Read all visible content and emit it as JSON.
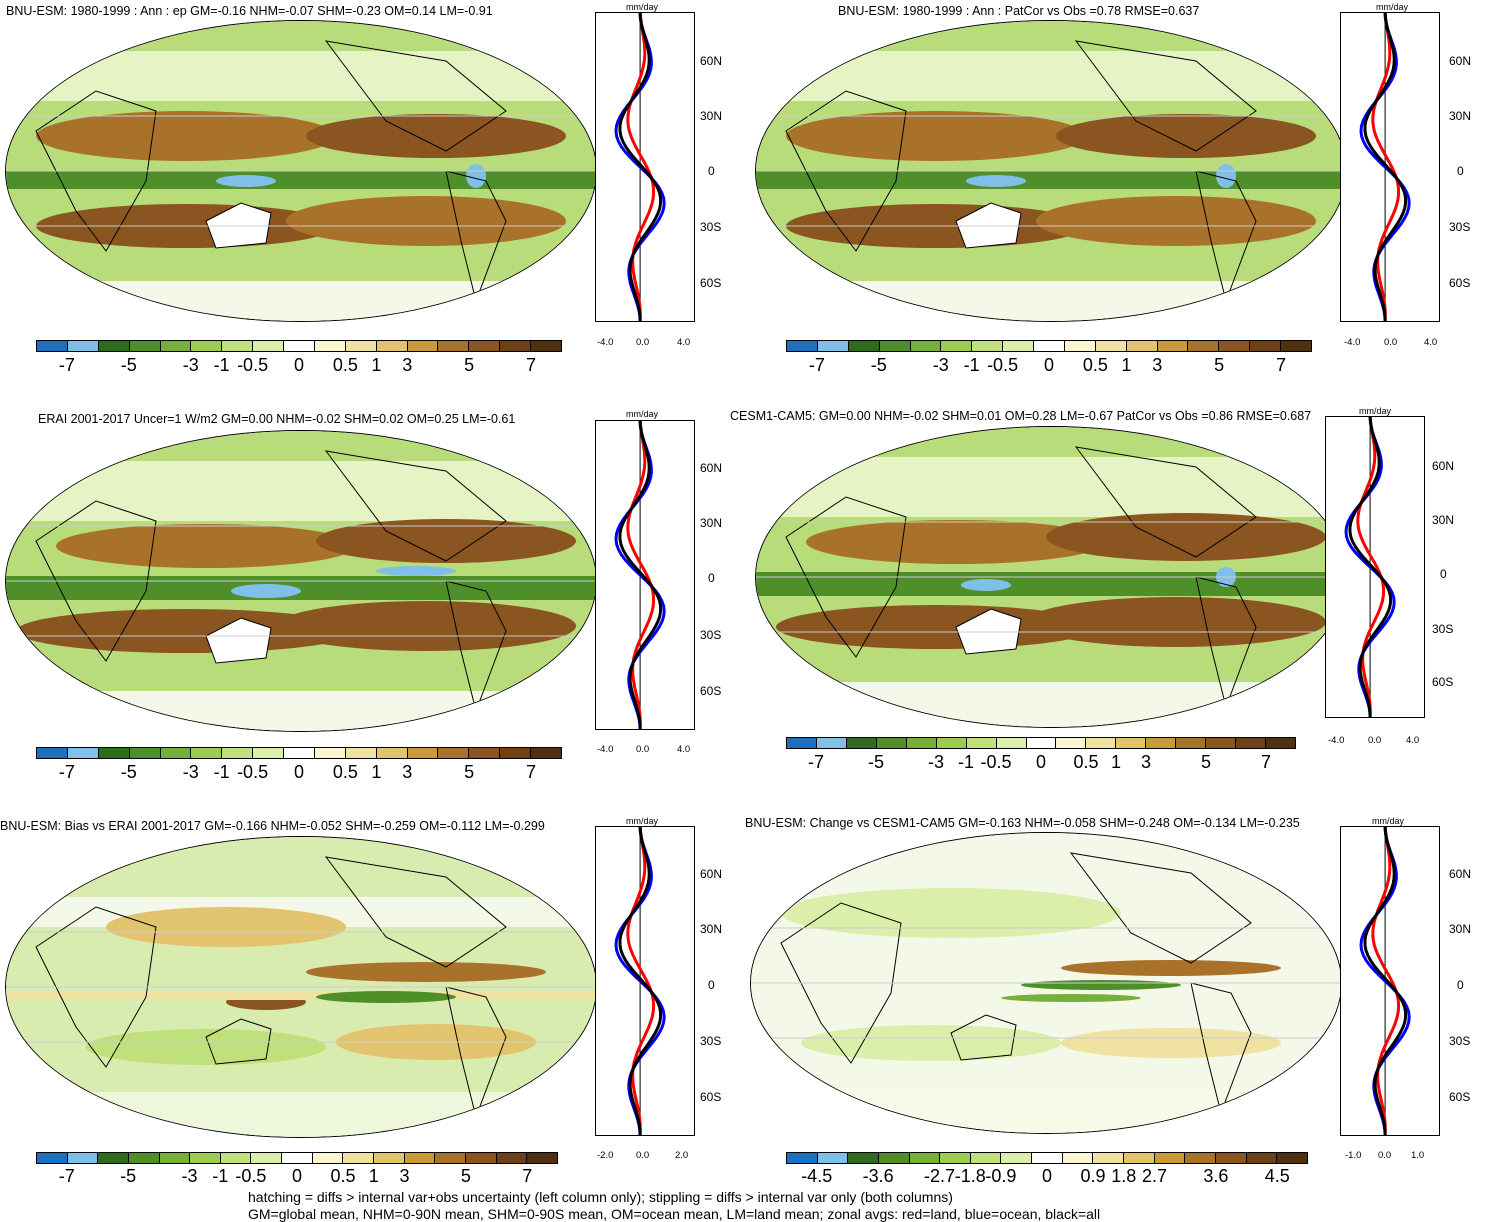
{
  "panels": [
    {
      "title": "BNU-ESM: 1980-1999 : Ann : ep GM=-0.16 NHM=-0.07 SHM=-0.23 OM=0.14 LM=-0.91",
      "unit": "mm/day",
      "lat_labels": [
        "60N",
        "30N",
        "0",
        "30S",
        "60S"
      ],
      "x_ticks": [
        "-4.0",
        "0.0",
        "4.0"
      ],
      "cbar_labels": [
        "-7",
        "-5",
        "-3",
        "-1",
        "-0.5",
        "0",
        "0.5",
        "1",
        "3",
        "5",
        "7"
      ]
    },
    {
      "title": "BNU-ESM: 1980-1999 : Ann : PatCor vs Obs =0.78 RMSE=0.637",
      "unit": "mm/day",
      "lat_labels": [
        "60N",
        "30N",
        "0",
        "30S",
        "60S"
      ],
      "x_ticks": [
        "-4.0",
        "0.0",
        "4.0"
      ],
      "cbar_labels": [
        "-7",
        "-5",
        "-3",
        "-1",
        "-0.5",
        "0",
        "0.5",
        "1",
        "3",
        "5",
        "7"
      ]
    },
    {
      "title": "ERAI 2001-2017 Uncer=1 W/m2 GM=0.00 NHM=-0.02 SHM=0.02 OM=0.25 LM=-0.61",
      "unit": "mm/day",
      "lat_labels": [
        "60N",
        "30N",
        "0",
        "30S",
        "60S"
      ],
      "x_ticks": [
        "-4.0",
        "0.0",
        "4.0"
      ],
      "cbar_labels": [
        "-7",
        "-5",
        "-3",
        "-1",
        "-0.5",
        "0",
        "0.5",
        "1",
        "3",
        "5",
        "7"
      ]
    },
    {
      "title": "CESM1-CAM5: GM=0.00 NHM=-0.02 SHM=0.01 OM=0.28 LM=-0.67 PatCor vs Obs =0.86 RMSE=0.687",
      "unit": "mm/day",
      "lat_labels": [
        "60N",
        "30N",
        "0",
        "30S",
        "60S"
      ],
      "x_ticks": [
        "-4.0",
        "0.0",
        "4.0"
      ],
      "cbar_labels": [
        "-7",
        "-5",
        "-3",
        "-1",
        "-0.5",
        "0",
        "0.5",
        "1",
        "3",
        "5",
        "7"
      ]
    },
    {
      "title": "BNU-ESM: Bias vs ERAI 2001-2017 GM=-0.166 NHM=-0.052 SHM=-0.259 OM=-0.112 LM=-0.299",
      "unit": "mm/day",
      "lat_labels": [
        "60N",
        "30N",
        "0",
        "30S",
        "60S"
      ],
      "x_ticks": [
        "-2.0",
        "0.0",
        "2.0"
      ],
      "cbar_labels": [
        "-7",
        "-5",
        "-3",
        "-1",
        "-0.5",
        "0",
        "0.5",
        "1",
        "3",
        "5",
        "7"
      ]
    },
    {
      "title": "BNU-ESM: Change vs CESM1-CAM5 GM=-0.163 NHM=-0.058 SHM=-0.248 OM=-0.134 LM=-0.235",
      "unit": "mm/day",
      "lat_labels": [
        "60N",
        "30N",
        "0",
        "30S",
        "60S"
      ],
      "x_ticks": [
        "-1.0",
        "0.0",
        "1.0"
      ],
      "cbar_labels": [
        "-4.5",
        "-3.6",
        "-2.7",
        "-1.8",
        "-0.9",
        "0",
        "0.9",
        "1.8",
        "2.7",
        "3.6",
        "4.5"
      ]
    }
  ],
  "colorbar_colors": [
    "#1f6fbf",
    "#7fbfe8",
    "#2e6b1e",
    "#4f8f2a",
    "#76b03a",
    "#9ccc50",
    "#bfe07a",
    "#dcefaa",
    "#ffffff",
    "#fbf5d2",
    "#f0e2a0",
    "#e2c46e",
    "#c99a3a",
    "#a9722a",
    "#8a5520",
    "#6e4017",
    "#513010"
  ],
  "zonal_colors": {
    "land": "#ff0000",
    "ocean": "#0000ff",
    "all": "#000000"
  },
  "footer": {
    "line1": "hatching = diffs > internal var+obs uncertainty (left column only); stippling = diffs > internal var only (both columns)",
    "line2": "GM=global mean, NHM=0-90N mean, SHM=0-90S mean, OM=ocean mean, LM=land mean; zonal avgs: red=land, blue=ocean, black=all"
  }
}
